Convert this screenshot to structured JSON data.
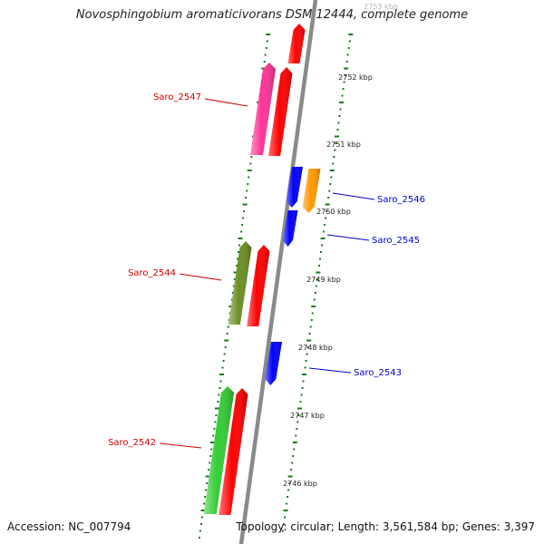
{
  "title": "Novosphingobium aromaticivorans DSM 12444, complete genome",
  "accession": "Accession: NC_007794",
  "summary": "Topology: circular; Length: 3,561,584 bp; Genes: 3,397",
  "colors": {
    "backbone": "#8a8a8a",
    "tick": "#1a7a1a",
    "forward_label": "#cc0000",
    "reverse_label": "#0000cc"
  },
  "scale_labels": [
    "2753 kbp",
    "2752 kbp",
    "2751 kbp",
    "2750 kbp",
    "2749 kbp",
    "2748 kbp",
    "2747 kbp",
    "2746 kbp"
  ],
  "gene_labels": [
    {
      "text": "Saro_2547",
      "strand": "forward"
    },
    {
      "text": "Saro_2546",
      "strand": "reverse"
    },
    {
      "text": "Saro_2545",
      "strand": "reverse"
    },
    {
      "text": "Saro_2544",
      "strand": "forward"
    },
    {
      "text": "Saro_2543",
      "strand": "reverse"
    },
    {
      "text": "Saro_2542",
      "strand": "forward"
    }
  ],
  "genes": [
    {
      "color": "#ff0000",
      "strand": "forward"
    },
    {
      "color": "#ff3399",
      "strand": "forward"
    },
    {
      "color": "#ff0000",
      "strand": "forward"
    },
    {
      "color": "#0000ff",
      "strand": "reverse"
    },
    {
      "color": "#ff9900",
      "strand": "reverse"
    },
    {
      "color": "#0000ff",
      "strand": "reverse"
    },
    {
      "color": "#6b8e23",
      "strand": "forward"
    },
    {
      "color": "#ff0000",
      "strand": "forward"
    },
    {
      "color": "#0000ff",
      "strand": "reverse"
    },
    {
      "color": "#33cc33",
      "strand": "forward"
    },
    {
      "color": "#ff0000",
      "strand": "forward"
    }
  ]
}
